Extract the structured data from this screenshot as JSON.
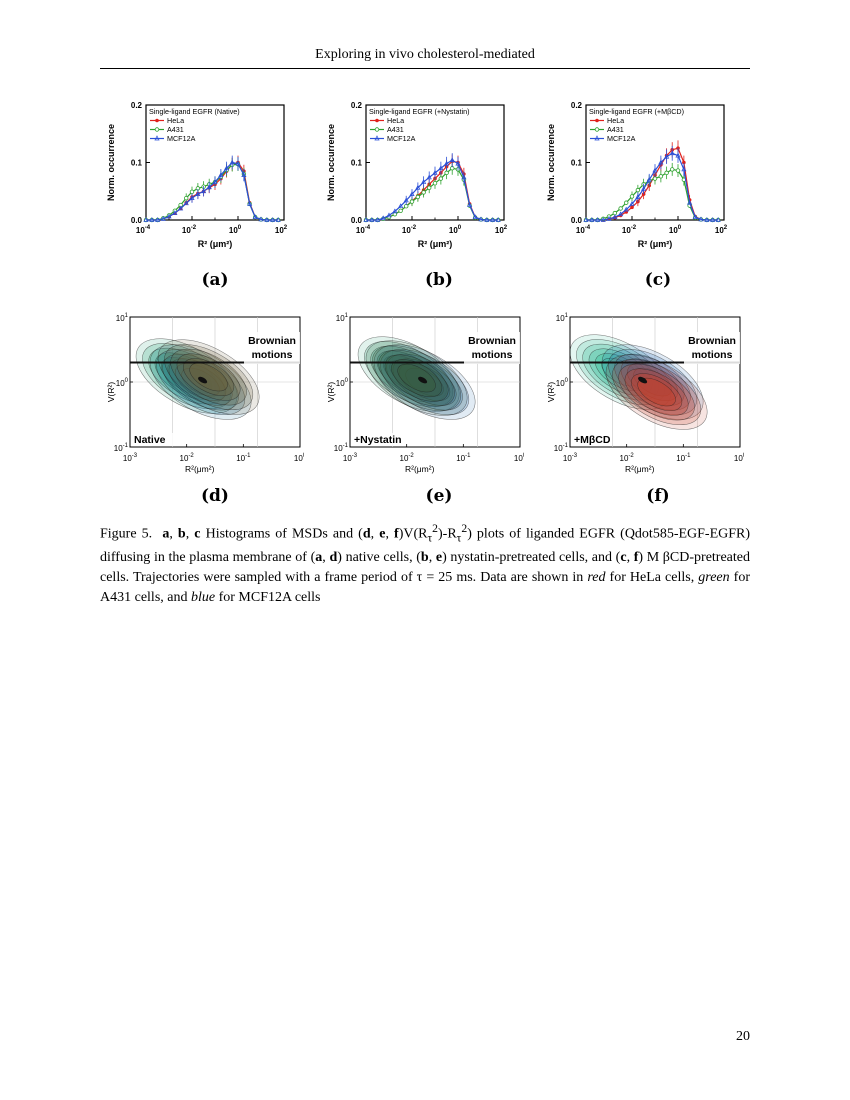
{
  "header": {
    "title": "Exploring in vivo cholesterol-mediated"
  },
  "page_number": "20",
  "colors": {
    "hela": "#e0201b",
    "a431": "#2ea12e",
    "mcf12a": "#2a4fd6"
  },
  "histograms": {
    "ylabel": "Norm. occurrence",
    "xlabel": "R² (μm²)",
    "yticks": [
      "0.0",
      "0.1",
      "0.2"
    ],
    "xtick_bases": [
      "10",
      "10",
      "10",
      "10"
    ],
    "xtick_exps": [
      "-4",
      "-2",
      "0",
      "2"
    ],
    "legend": [
      "HeLa",
      "A431",
      "MCF12A"
    ],
    "panels": [
      {
        "title": "Single-ligand EGFR (Native)",
        "label": "(a)"
      },
      {
        "title": "Single-ligand EGFR (+Nystatin)",
        "label": "(b)"
      },
      {
        "title": "Single-ligand EGFR (+MβCD)",
        "label": "(c)"
      }
    ]
  },
  "density": {
    "ylabel": "V(R²)",
    "xlabel": "R²(μm²)",
    "brownian_line1": "Brownian",
    "brownian_line2": "motions",
    "ytick_exps": [
      "1",
      "0",
      "-1"
    ],
    "xtick_exps": [
      "-3",
      "-2",
      "-1",
      "0"
    ],
    "panels": [
      {
        "condition": "Native",
        "label": "(d)"
      },
      {
        "condition": "+Nystatin",
        "label": "(e)"
      },
      {
        "condition": "+MβCD",
        "label": "(f)"
      }
    ]
  },
  "caption": {
    "prefix": "Figure 5.",
    "a": "a",
    "b": "b",
    "c": "c",
    "d": "d",
    "e": "e",
    "f": "f",
    "part1": " Histograms of MSDs and (",
    "part2": ")V(R",
    "part3": ") plots of liganded EGFR (Qdot585-EGF-EGFR) diffusing in the plasma membrane of (",
    "part4": ") native cells, (",
    "part5": ") nystatin-pretreated cells, and (",
    "part6": ") M βCD-pretreated cells. Trajectories were sampled with a frame period of τ = 25 ms. Data are shown in ",
    "red": "red",
    "part7": " for HeLa cells, ",
    "green": "green",
    "part8": " for A431 cells, and ",
    "blue": "blue",
    "part9": " for MCF12A cells"
  },
  "chart_data": [
    {
      "type": "line",
      "panel": "a",
      "title": "Single-ligand EGFR (Native)",
      "xlabel": "R² (μm²)",
      "ylabel": "Norm. occurrence",
      "xscale": "log",
      "xlim": [
        0.0001,
        100
      ],
      "ylim": [
        0,
        0.2
      ],
      "x": [
        0.0001,
        0.00018,
        0.00032,
        0.00056,
        0.001,
        0.0018,
        0.0032,
        0.0056,
        0.01,
        0.018,
        0.032,
        0.056,
        0.1,
        0.18,
        0.32,
        0.56,
        1,
        1.8,
        3.2,
        5.6,
        10,
        18,
        32,
        56
      ],
      "series": [
        {
          "name": "HeLa",
          "values": [
            0,
            0,
            0,
            0.002,
            0.006,
            0.012,
            0.02,
            0.03,
            0.04,
            0.046,
            0.05,
            0.056,
            0.062,
            0.072,
            0.085,
            0.097,
            0.1,
            0.085,
            0.03,
            0.005,
            0.001,
            0,
            0,
            0
          ]
        },
        {
          "name": "A431",
          "values": [
            0,
            0,
            0,
            0.003,
            0.008,
            0.016,
            0.026,
            0.038,
            0.049,
            0.055,
            0.058,
            0.062,
            0.066,
            0.075,
            0.087,
            0.096,
            0.097,
            0.08,
            0.028,
            0.005,
            0.001,
            0,
            0,
            0
          ]
        },
        {
          "name": "MCF12A",
          "values": [
            0,
            0,
            0,
            0.002,
            0.006,
            0.012,
            0.02,
            0.029,
            0.038,
            0.045,
            0.05,
            0.057,
            0.066,
            0.078,
            0.09,
            0.1,
            0.098,
            0.078,
            0.028,
            0.005,
            0.001,
            0,
            0,
            0
          ]
        }
      ]
    },
    {
      "type": "line",
      "panel": "b",
      "title": "Single-ligand EGFR (+Nystatin)",
      "xlabel": "R² (μm²)",
      "ylabel": "Norm. occurrence",
      "xscale": "log",
      "xlim": [
        0.0001,
        100
      ],
      "ylim": [
        0,
        0.2
      ],
      "x": [
        0.0001,
        0.00018,
        0.00032,
        0.00056,
        0.001,
        0.0018,
        0.0032,
        0.0056,
        0.01,
        0.018,
        0.032,
        0.056,
        0.1,
        0.18,
        0.32,
        0.56,
        1,
        1.8,
        3.2,
        5.6,
        10,
        18,
        32,
        56
      ],
      "series": [
        {
          "name": "HeLa",
          "values": [
            0,
            0,
            0,
            0.002,
            0.005,
            0.01,
            0.016,
            0.024,
            0.033,
            0.042,
            0.052,
            0.062,
            0.072,
            0.082,
            0.093,
            0.102,
            0.1,
            0.08,
            0.028,
            0.005,
            0.001,
            0,
            0,
            0
          ]
        },
        {
          "name": "A431",
          "values": [
            0,
            0,
            0,
            0.002,
            0.005,
            0.01,
            0.016,
            0.024,
            0.032,
            0.04,
            0.048,
            0.056,
            0.064,
            0.072,
            0.082,
            0.09,
            0.088,
            0.07,
            0.025,
            0.004,
            0.001,
            0,
            0,
            0
          ]
        },
        {
          "name": "MCF12A",
          "values": [
            0,
            0,
            0,
            0.003,
            0.008,
            0.015,
            0.024,
            0.034,
            0.045,
            0.056,
            0.066,
            0.074,
            0.082,
            0.09,
            0.098,
            0.104,
            0.098,
            0.074,
            0.026,
            0.005,
            0.001,
            0,
            0,
            0
          ]
        }
      ]
    },
    {
      "type": "line",
      "panel": "c",
      "title": "Single-ligand EGFR (+MβCD)",
      "xlabel": "R² (μm²)",
      "ylabel": "Norm. occurrence",
      "xscale": "log",
      "xlim": [
        0.0001,
        100
      ],
      "ylim": [
        0,
        0.2
      ],
      "x": [
        0.0001,
        0.00018,
        0.00032,
        0.00056,
        0.001,
        0.0018,
        0.0032,
        0.0056,
        0.01,
        0.018,
        0.032,
        0.056,
        0.1,
        0.18,
        0.32,
        0.56,
        1,
        1.8,
        3.2,
        5.6,
        10,
        18,
        32,
        56
      ],
      "series": [
        {
          "name": "HeLa",
          "values": [
            0,
            0,
            0,
            0,
            0.002,
            0.004,
            0.008,
            0.014,
            0.022,
            0.032,
            0.045,
            0.06,
            0.078,
            0.096,
            0.112,
            0.122,
            0.125,
            0.1,
            0.035,
            0.006,
            0.001,
            0,
            0,
            0
          ]
        },
        {
          "name": "A431",
          "values": [
            0,
            0,
            0,
            0.002,
            0.006,
            0.012,
            0.02,
            0.03,
            0.041,
            0.052,
            0.062,
            0.068,
            0.072,
            0.076,
            0.082,
            0.088,
            0.086,
            0.07,
            0.025,
            0.004,
            0.001,
            0,
            0,
            0
          ]
        },
        {
          "name": "MCF12A",
          "values": [
            0,
            0,
            0,
            0,
            0.002,
            0.005,
            0.01,
            0.018,
            0.028,
            0.04,
            0.054,
            0.07,
            0.086,
            0.1,
            0.11,
            0.116,
            0.112,
            0.088,
            0.03,
            0.005,
            0.001,
            0,
            0,
            0
          ]
        }
      ]
    },
    {
      "type": "heatmap",
      "panel": "d",
      "xlabel": "R²(μm²)",
      "ylabel": "V(R²)",
      "xscale": "log",
      "yscale": "log",
      "xlim": [
        0.001,
        1
      ],
      "ylim": [
        0.1,
        10
      ],
      "annotation": "Native",
      "reference_line_y": 2
    }
  ]
}
